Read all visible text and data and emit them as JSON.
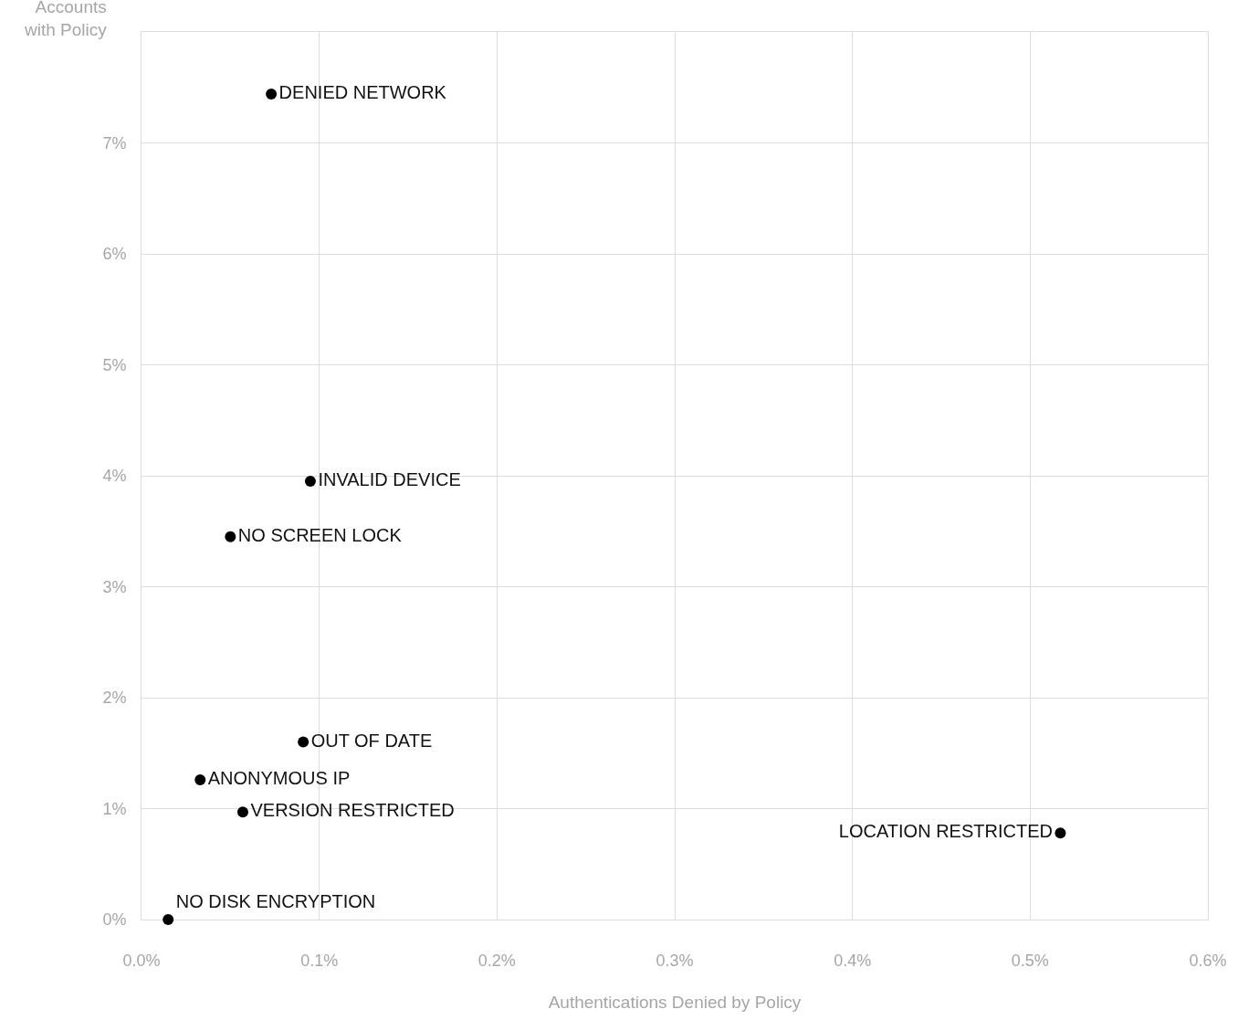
{
  "chart_data": {
    "type": "scatter",
    "xlabel": "Authentications Denied by Policy",
    "ylabel": "Accounts with Policy",
    "xlim": [
      0,
      0.6
    ],
    "ylim": [
      0,
      8
    ],
    "xticks": [
      {
        "value": 0,
        "label": "0.0%"
      },
      {
        "value": 0.1,
        "label": "0.1%"
      },
      {
        "value": 0.2,
        "label": "0.2%"
      },
      {
        "value": 0.3,
        "label": "0.3%"
      },
      {
        "value": 0.4,
        "label": "0.4%"
      },
      {
        "value": 0.5,
        "label": "0.5%"
      },
      {
        "value": 0.6,
        "label": "0.6%"
      }
    ],
    "yticks": [
      {
        "value": 0,
        "label": "0%"
      },
      {
        "value": 1,
        "label": "1%"
      },
      {
        "value": 2,
        "label": "2%"
      },
      {
        "value": 3,
        "label": "3%"
      },
      {
        "value": 4,
        "label": "4%"
      },
      {
        "value": 5,
        "label": "5%"
      },
      {
        "value": 6,
        "label": "6%"
      },
      {
        "value": 7,
        "label": "7%"
      }
    ],
    "grid": true,
    "marker": "circle",
    "series": [
      {
        "name": "DENIED NETWORK",
        "color": "#000000",
        "x": [
          0.073
        ],
        "values": [
          7.44
        ]
      },
      {
        "name": "INVALID DEVICE",
        "color": "#000000",
        "x": [
          0.095
        ],
        "values": [
          3.95
        ]
      },
      {
        "name": "NO SCREEN LOCK",
        "color": "#000000",
        "x": [
          0.05
        ],
        "values": [
          3.45
        ]
      },
      {
        "name": "OUT OF DATE",
        "color": "#000000",
        "x": [
          0.091
        ],
        "values": [
          1.6
        ]
      },
      {
        "name": "ANONYMOUS IP",
        "color": "#000000",
        "x": [
          0.033
        ],
        "values": [
          1.26
        ]
      },
      {
        "name": "VERSION RESTRICTED",
        "color": "#000000",
        "x": [
          0.057
        ],
        "values": [
          0.97
        ]
      },
      {
        "name": "LOCATION RESTRICTED",
        "color": "#000000",
        "x": [
          0.517
        ],
        "values": [
          0.78
        ]
      },
      {
        "name": "NO DISK ENCRYPTION",
        "color": "#000000",
        "x": [
          0.015
        ],
        "values": [
          0
        ]
      }
    ]
  }
}
